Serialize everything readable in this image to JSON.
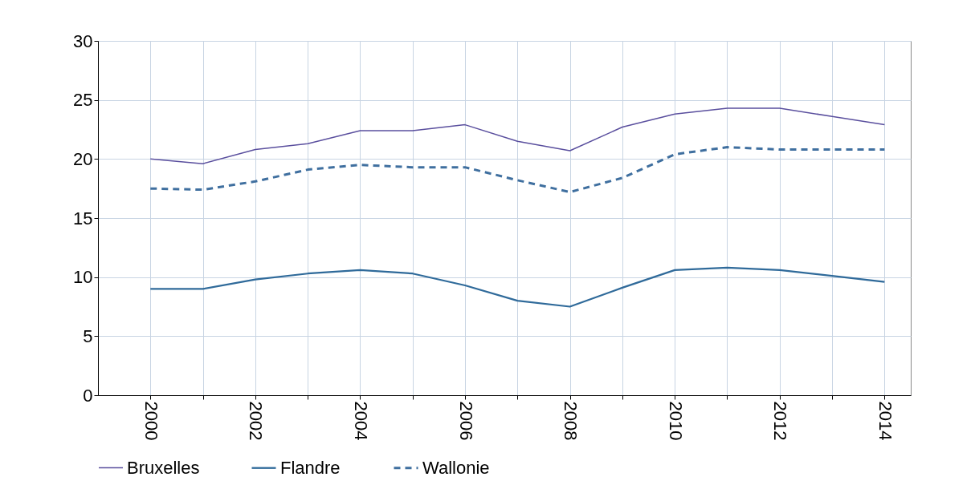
{
  "chart_data": {
    "type": "line",
    "x": [
      2000,
      2001,
      2002,
      2003,
      2004,
      2005,
      2006,
      2007,
      2008,
      2009,
      2010,
      2011,
      2012,
      2013,
      2014
    ],
    "series": [
      {
        "name": "Bruxelles",
        "color": "#5a4f9e",
        "line_style": "solid",
        "values": [
          20.0,
          19.6,
          20.8,
          21.3,
          22.4,
          22.4,
          22.9,
          21.5,
          20.7,
          22.7,
          23.8,
          24.3,
          24.3,
          23.6,
          22.9
        ]
      },
      {
        "name": "Flandre",
        "color": "#2f6a9a",
        "line_style": "solid",
        "values": [
          9.0,
          9.0,
          9.8,
          10.3,
          10.6,
          10.3,
          9.3,
          8.0,
          7.5,
          9.1,
          10.6,
          10.8,
          10.6,
          10.1,
          9.6
        ]
      },
      {
        "name": "Wallonie",
        "color": "#3f6f9f",
        "line_style": "dashed",
        "values": [
          17.5,
          17.4,
          18.1,
          19.1,
          19.5,
          19.3,
          19.3,
          18.2,
          17.2,
          18.4,
          20.4,
          21.0,
          20.8,
          20.8,
          20.8
        ]
      }
    ],
    "xlim": [
      1999,
      2014.5
    ],
    "xticks": [
      2000,
      {
        "value": 2001,
        "label": null
      },
      2002,
      {
        "value": 2003,
        "label": null
      },
      2004,
      {
        "value": 2005,
        "label": null
      },
      2006,
      {
        "value": 2007,
        "label": null
      },
      2008,
      {
        "value": 2009,
        "label": null
      },
      2010,
      {
        "value": 2011,
        "label": null
      },
      2012,
      {
        "value": 2013,
        "label": null
      },
      2014
    ],
    "ylim": [
      0,
      30
    ],
    "yticks": [
      0,
      5,
      10,
      15,
      20,
      25,
      30
    ],
    "grid": true,
    "legend": "bottom",
    "marker": "none"
  }
}
